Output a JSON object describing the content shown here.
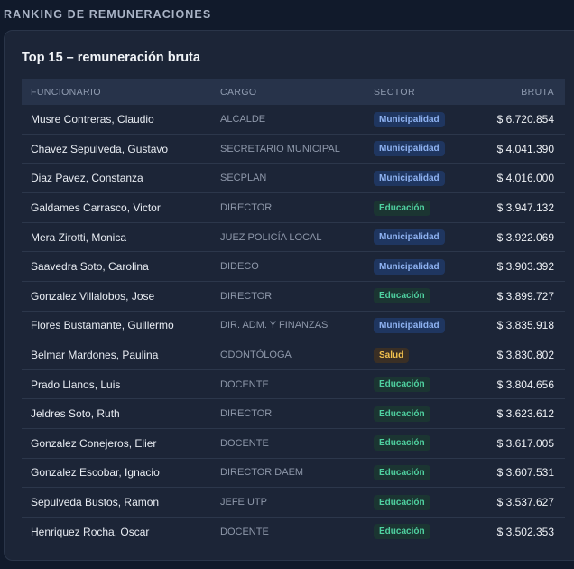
{
  "section_title": "RANKING DE REMUNERACIONES",
  "card_title": "Top 15 – remuneración bruta",
  "columns": [
    "FUNCIONARIO",
    "CARGO",
    "SECTOR",
    "BRUTA"
  ],
  "rows": [
    {
      "name": "Musre Contreras, Claudio",
      "cargo": "ALCALDE",
      "sector": "Municipalidad",
      "bruta": "$ 6.720.854"
    },
    {
      "name": "Chavez Sepulveda, Gustavo",
      "cargo": "SECRETARIO MUNICIPAL",
      "sector": "Municipalidad",
      "bruta": "$ 4.041.390"
    },
    {
      "name": "Diaz Pavez, Constanza",
      "cargo": "SECPLAN",
      "sector": "Municipalidad",
      "bruta": "$ 4.016.000"
    },
    {
      "name": "Galdames Carrasco, Victor",
      "cargo": "DIRECTOR",
      "sector": "Educación",
      "bruta": "$ 3.947.132"
    },
    {
      "name": "Mera Zirotti, Monica",
      "cargo": "JUEZ POLICÍA LOCAL",
      "sector": "Municipalidad",
      "bruta": "$ 3.922.069"
    },
    {
      "name": "Saavedra Soto, Carolina",
      "cargo": "DIDECO",
      "sector": "Municipalidad",
      "bruta": "$ 3.903.392"
    },
    {
      "name": "Gonzalez Villalobos, Jose",
      "cargo": "DIRECTOR",
      "sector": "Educación",
      "bruta": "$ 3.899.727"
    },
    {
      "name": "Flores Bustamante, Guillermo",
      "cargo": "DIR. ADM. Y FINANZAS",
      "sector": "Municipalidad",
      "bruta": "$ 3.835.918"
    },
    {
      "name": "Belmar Mardones, Paulina",
      "cargo": "ODONTÓLOGA",
      "sector": "Salud",
      "bruta": "$ 3.830.802"
    },
    {
      "name": "Prado Llanos, Luis",
      "cargo": "DOCENTE",
      "sector": "Educación",
      "bruta": "$ 3.804.656"
    },
    {
      "name": "Jeldres Soto, Ruth",
      "cargo": "DIRECTOR",
      "sector": "Educación",
      "bruta": "$ 3.623.612"
    },
    {
      "name": "Gonzalez Conejeros, Elier",
      "cargo": "DOCENTE",
      "sector": "Educación",
      "bruta": "$ 3.617.005"
    },
    {
      "name": "Gonzalez Escobar, Ignacio",
      "cargo": "DIRECTOR DAEM",
      "sector": "Educación",
      "bruta": "$ 3.607.531"
    },
    {
      "name": "Sepulveda Bustos, Ramon",
      "cargo": "JEFE UTP",
      "sector": "Educación",
      "bruta": "$ 3.537.627"
    },
    {
      "name": "Henriquez Rocha, Oscar",
      "cargo": "DOCENTE",
      "sector": "Educación",
      "bruta": "$ 3.502.353"
    }
  ],
  "sector_colors": {
    "Municipalidad": "#8fb3f2",
    "Educación": "#4fd1a0",
    "Salud": "#f2c14e"
  }
}
